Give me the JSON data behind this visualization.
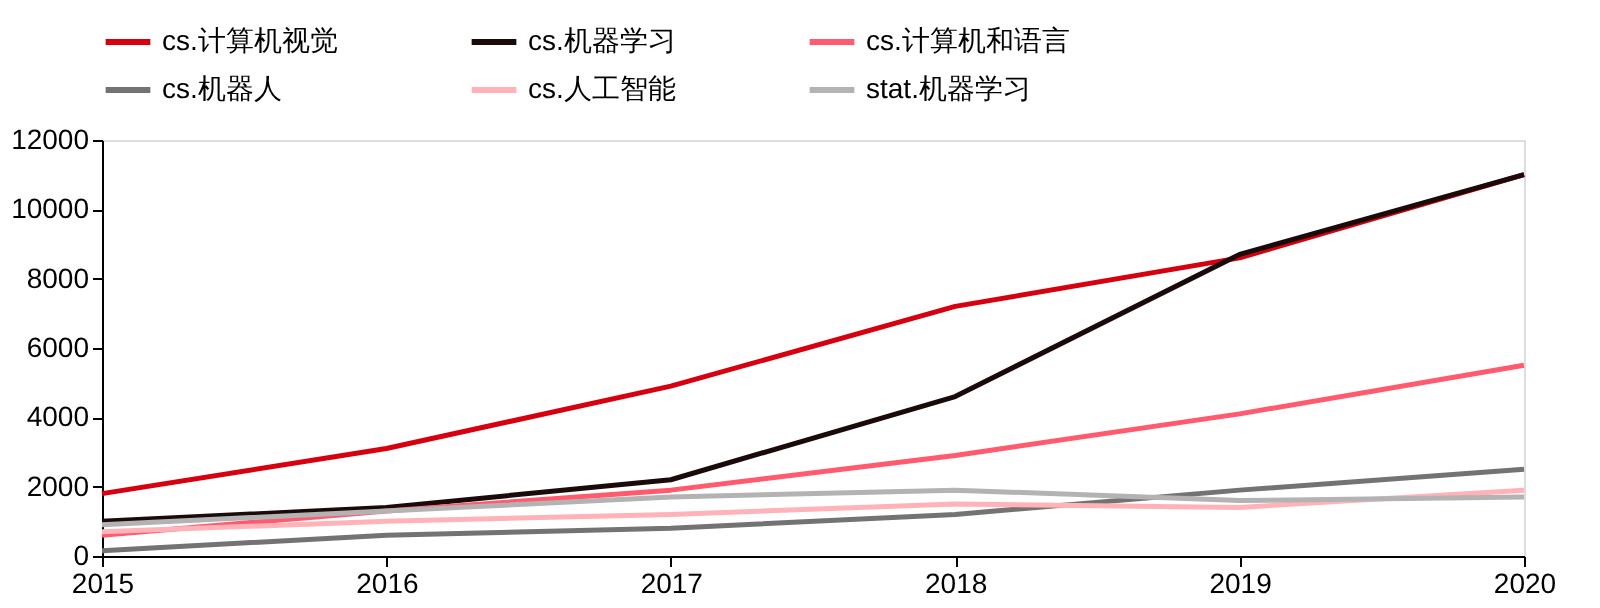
{
  "chart_data": {
    "type": "line",
    "x": [
      2015,
      2016,
      2017,
      2018,
      2019,
      2020
    ],
    "xlim": [
      2015,
      2020
    ],
    "xticks": [
      2015,
      2016,
      2017,
      2018,
      2019,
      2020
    ],
    "ylim": [
      0,
      12000
    ],
    "yticks": [
      0,
      2000,
      4000,
      6000,
      8000,
      10000,
      12000
    ],
    "grid": false,
    "legend": "top",
    "marker": "none",
    "line_style": "solid",
    "series": [
      {
        "name": "cs.计算机视觉",
        "color": "#d7000f",
        "values": [
          1800,
          3100,
          4900,
          7200,
          8600,
          11000
        ]
      },
      {
        "name": "cs.机器学习",
        "color": "#1a0a0a",
        "values": [
          1000,
          1400,
          2200,
          4600,
          8700,
          11000
        ]
      },
      {
        "name": "cs.计算机和语言",
        "color": "#ff5a6e",
        "values": [
          600,
          1300,
          1900,
          2900,
          4100,
          5500
        ]
      },
      {
        "name": "cs.机器人",
        "color": "#737373",
        "values": [
          150,
          600,
          800,
          1200,
          1900,
          2500
        ]
      },
      {
        "name": "cs.人工智能",
        "color": "#ffb3b8",
        "values": [
          700,
          1000,
          1200,
          1500,
          1400,
          1900
        ]
      },
      {
        "name": "stat.机器学习",
        "color": "#b3b3b3",
        "values": [
          900,
          1300,
          1700,
          1900,
          1600,
          1700
        ]
      }
    ]
  }
}
